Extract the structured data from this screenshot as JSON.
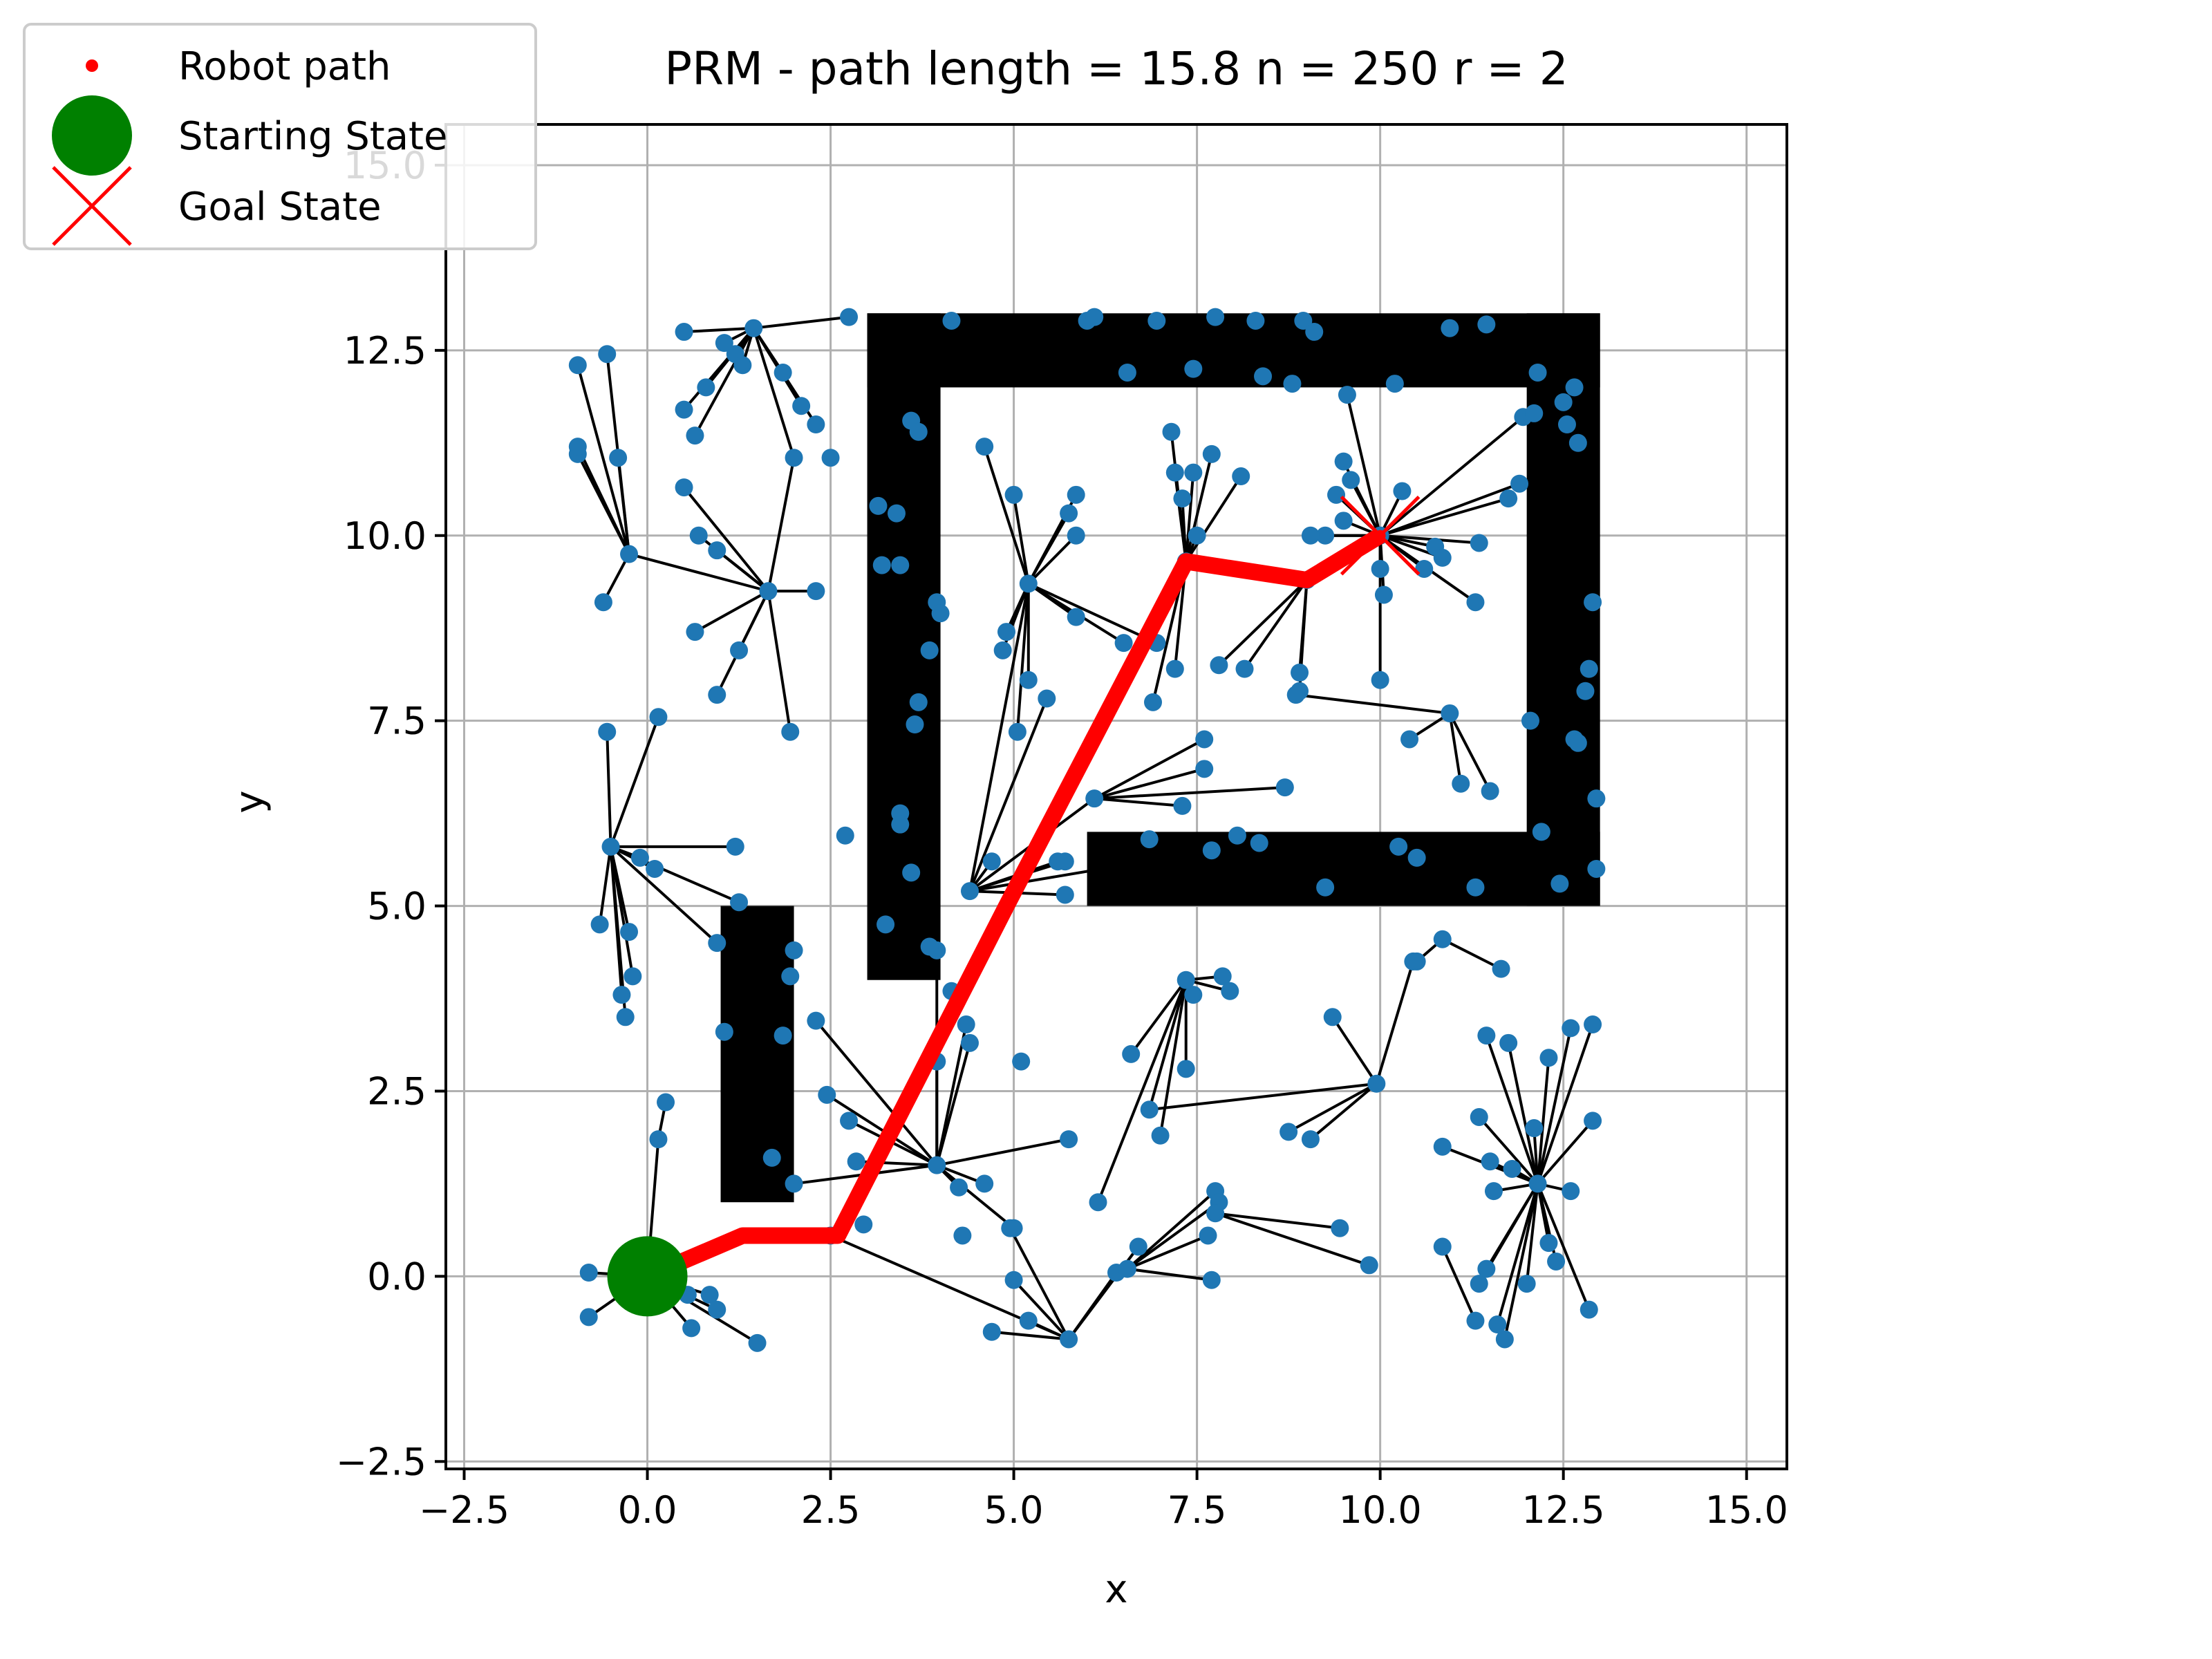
{
  "chart_data": {
    "type": "scatter",
    "title": "PRM - path length = 15.8  n = 250  r = 2",
    "xlabel": "x",
    "ylabel": "y",
    "xlim": [
      -2.75,
      15.55
    ],
    "ylim": [
      -2.6,
      15.55
    ],
    "xticks": [
      -2.5,
      0.0,
      2.5,
      5.0,
      7.5,
      10.0,
      12.5,
      15.0
    ],
    "xtick_labels": [
      "−2.5",
      "0.0",
      "2.5",
      "5.0",
      "7.5",
      "10.0",
      "12.5",
      "15.0"
    ],
    "yticks": [
      -2.5,
      0.0,
      2.5,
      5.0,
      7.5,
      10.0,
      12.5,
      15.0
    ],
    "ytick_labels": [
      "−2.5",
      "0.0",
      "2.5",
      "5.0",
      "7.5",
      "10.0",
      "12.5",
      "15.0"
    ],
    "grid": true,
    "legend": {
      "placement": "upper-left",
      "entries": [
        {
          "label": "Robot path",
          "marker": "dot",
          "color": "#ff0000"
        },
        {
          "label": "Starting State",
          "marker": "circle",
          "color": "#008000"
        },
        {
          "label": "Goal State",
          "marker": "x",
          "color": "#ff0000"
        }
      ]
    },
    "colors": {
      "samples": "#1f77b4",
      "edges": "#000000",
      "path": "#ff0000",
      "start": "#008000",
      "goal": "#ff0000",
      "obstacle": "#000000"
    },
    "obstacles": [
      {
        "x": [
          3.0,
          4.0
        ],
        "y": [
          4.0,
          13.0
        ]
      },
      {
        "x": [
          3.0,
          13.0
        ],
        "y": [
          12.0,
          13.0
        ]
      },
      {
        "x": [
          12.0,
          13.0
        ],
        "y": [
          5.0,
          13.0
        ]
      },
      {
        "x": [
          6.0,
          13.0
        ],
        "y": [
          5.0,
          6.0
        ]
      },
      {
        "x": [
          1.0,
          2.0
        ],
        "y": [
          1.0,
          5.0
        ]
      }
    ],
    "start": {
      "x": 0.0,
      "y": 0.0
    },
    "goal": {
      "x": 10.0,
      "y": 10.0
    },
    "path": {
      "x": [
        0.0,
        1.3,
        2.6,
        4.9,
        7.35,
        9.0,
        10.0
      ],
      "y": [
        0.0,
        0.55,
        0.55,
        5.0,
        9.65,
        9.4,
        10.0
      ]
    },
    "hubs": [
      {
        "x": 1.45,
        "y": 12.8,
        "links": [
          [
            0.5,
            12.75
          ],
          [
            1.05,
            12.6
          ],
          [
            1.2,
            12.45
          ],
          [
            1.3,
            12.3
          ],
          [
            0.8,
            12.0
          ],
          [
            0.5,
            11.7
          ],
          [
            0.65,
            11.35
          ],
          [
            1.85,
            12.2
          ],
          [
            2.1,
            11.75
          ],
          [
            2.3,
            11.5
          ],
          [
            2.0,
            11.05
          ],
          [
            2.75,
            12.95
          ]
        ]
      },
      {
        "x": -0.25,
        "y": 9.75,
        "links": [
          [
            -0.95,
            11.1
          ],
          [
            -0.95,
            11.2
          ],
          [
            -0.4,
            11.05
          ],
          [
            -0.95,
            12.3
          ],
          [
            -0.55,
            12.45
          ],
          [
            -0.6,
            9.1
          ],
          [
            1.65,
            9.25
          ]
        ]
      },
      {
        "x": 1.65,
        "y": 9.25,
        "links": [
          [
            0.5,
            10.65
          ],
          [
            0.7,
            10.0
          ],
          [
            0.95,
            9.8
          ],
          [
            2.3,
            9.25
          ],
          [
            0.65,
            8.7
          ],
          [
            1.25,
            8.45
          ],
          [
            0.95,
            7.85
          ],
          [
            2.0,
            11.05
          ],
          [
            1.95,
            7.35
          ]
        ]
      },
      {
        "x": -0.5,
        "y": 5.8,
        "links": [
          [
            -0.55,
            7.35
          ],
          [
            0.15,
            7.55
          ],
          [
            -0.1,
            5.65
          ],
          [
            0.1,
            5.5
          ],
          [
            0.95,
            4.5
          ],
          [
            1.25,
            5.05
          ],
          [
            -0.65,
            4.75
          ],
          [
            -0.25,
            4.65
          ],
          [
            -0.2,
            4.05
          ],
          [
            -0.35,
            3.8
          ],
          [
            -0.3,
            3.5
          ],
          [
            1.2,
            5.8
          ]
        ]
      },
      {
        "x": 0.15,
        "y": 1.85,
        "links": [
          [
            0.25,
            2.35
          ],
          [
            0.0,
            0.0
          ]
        ]
      },
      {
        "x": 0.0,
        "y": 0.0,
        "links": [
          [
            -0.8,
            0.05
          ],
          [
            -0.8,
            -0.55
          ],
          [
            0.55,
            -0.25
          ],
          [
            0.6,
            -0.7
          ],
          [
            0.85,
            -0.25
          ],
          [
            0.95,
            -0.45
          ],
          [
            1.5,
            -0.9
          ]
        ]
      },
      {
        "x": 5.2,
        "y": 9.35,
        "links": [
          [
            4.6,
            11.2
          ],
          [
            5.0,
            10.55
          ],
          [
            5.75,
            10.3
          ],
          [
            5.85,
            10.55
          ],
          [
            5.85,
            10.0
          ],
          [
            4.9,
            8.7
          ],
          [
            4.85,
            8.45
          ],
          [
            5.2,
            8.05
          ],
          [
            5.05,
            7.35
          ],
          [
            6.95,
            8.55
          ],
          [
            6.5,
            8.55
          ],
          [
            5.85,
            8.9
          ],
          [
            4.4,
            5.2
          ]
        ]
      },
      {
        "x": 7.35,
        "y": 9.65,
        "links": [
          [
            7.15,
            11.4
          ],
          [
            7.2,
            10.85
          ],
          [
            7.3,
            10.5
          ],
          [
            7.45,
            10.85
          ],
          [
            7.7,
            11.1
          ],
          [
            8.1,
            10.8
          ],
          [
            7.5,
            10.0
          ],
          [
            7.2,
            8.2
          ],
          [
            6.9,
            7.75
          ]
        ]
      },
      {
        "x": 9.0,
        "y": 9.4,
        "links": [
          [
            7.8,
            8.25
          ],
          [
            8.15,
            8.2
          ],
          [
            8.9,
            8.15
          ],
          [
            8.9,
            7.9
          ],
          [
            10.0,
            10.0
          ]
        ]
      },
      {
        "x": 10.0,
        "y": 10.0,
        "links": [
          [
            9.55,
            11.9
          ],
          [
            9.4,
            10.55
          ],
          [
            9.5,
            11.0
          ],
          [
            9.6,
            10.75
          ],
          [
            10.3,
            10.6
          ],
          [
            9.5,
            10.2
          ],
          [
            9.25,
            10.0
          ],
          [
            9.05,
            10.0
          ],
          [
            10.75,
            9.85
          ],
          [
            10.85,
            9.7
          ],
          [
            10.6,
            9.55
          ],
          [
            10.05,
            9.2
          ],
          [
            10.0,
            9.55
          ],
          [
            10.0,
            8.05
          ],
          [
            11.3,
            9.1
          ],
          [
            11.35,
            9.9
          ],
          [
            11.9,
            10.7
          ],
          [
            11.95,
            11.6
          ],
          [
            11.75,
            10.5
          ]
        ]
      },
      {
        "x": 8.85,
        "y": 7.85,
        "links": [
          [
            10.95,
            7.6
          ]
        ]
      },
      {
        "x": 10.95,
        "y": 7.6,
        "links": [
          [
            10.4,
            7.25
          ],
          [
            11.1,
            6.65
          ],
          [
            11.5,
            6.55
          ]
        ]
      },
      {
        "x": 4.4,
        "y": 5.2,
        "links": [
          [
            5.6,
            5.6
          ],
          [
            5.7,
            5.6
          ],
          [
            4.7,
            5.6
          ],
          [
            5.7,
            5.15
          ],
          [
            6.1,
            6.45
          ],
          [
            7.7,
            5.75
          ],
          [
            5.45,
            7.8
          ]
        ]
      },
      {
        "x": 6.1,
        "y": 6.45,
        "links": [
          [
            7.6,
            6.85
          ],
          [
            8.7,
            6.6
          ],
          [
            7.3,
            6.35
          ],
          [
            7.6,
            7.25
          ]
        ]
      },
      {
        "x": 7.35,
        "y": 4.0,
        "links": [
          [
            7.45,
            3.8
          ],
          [
            7.85,
            4.05
          ],
          [
            7.95,
            3.85
          ],
          [
            7.35,
            2.8
          ],
          [
            6.85,
            2.25
          ],
          [
            7.0,
            1.9
          ],
          [
            6.6,
            3.0
          ],
          [
            6.15,
            1.0
          ]
        ]
      },
      {
        "x": 3.95,
        "y": 1.5,
        "links": [
          [
            2.3,
            3.45
          ],
          [
            2.45,
            2.45
          ],
          [
            2.75,
            2.1
          ],
          [
            2.85,
            1.55
          ],
          [
            2.0,
            1.25
          ],
          [
            3.95,
            4.4
          ],
          [
            3.95,
            2.9
          ],
          [
            4.35,
            3.4
          ],
          [
            4.4,
            3.15
          ],
          [
            4.25,
            1.2
          ],
          [
            4.6,
            1.25
          ],
          [
            5.0,
            0.65
          ],
          [
            5.75,
            1.85
          ]
        ]
      },
      {
        "x": 5.75,
        "y": -0.85,
        "links": [
          [
            5.0,
            -0.05
          ],
          [
            5.2,
            -0.6
          ],
          [
            4.7,
            -0.75
          ],
          [
            4.95,
            0.65
          ],
          [
            6.4,
            0.05
          ],
          [
            6.7,
            0.4
          ],
          [
            2.5,
            0.55
          ]
        ]
      },
      {
        "x": 6.55,
        "y": 0.1,
        "links": [
          [
            7.75,
            1.15
          ],
          [
            7.8,
            1.0
          ],
          [
            7.65,
            0.55
          ],
          [
            7.7,
            -0.05
          ]
        ]
      },
      {
        "x": 10.85,
        "y": 4.55,
        "links": [
          [
            10.5,
            4.25
          ],
          [
            11.65,
            4.15
          ]
        ]
      },
      {
        "x": 9.95,
        "y": 2.6,
        "links": [
          [
            9.35,
            3.5
          ],
          [
            10.45,
            4.25
          ],
          [
            8.75,
            1.95
          ],
          [
            9.05,
            1.85
          ],
          [
            6.85,
            2.25
          ]
        ]
      },
      {
        "x": 12.15,
        "y": 1.25,
        "links": [
          [
            11.45,
            3.25
          ],
          [
            11.75,
            3.15
          ],
          [
            12.3,
            2.95
          ],
          [
            12.6,
            3.35
          ],
          [
            12.9,
            3.4
          ],
          [
            12.1,
            2.0
          ],
          [
            11.35,
            2.15
          ],
          [
            11.5,
            1.55
          ],
          [
            11.8,
            1.45
          ],
          [
            10.85,
            1.75
          ],
          [
            12.9,
            2.1
          ],
          [
            12.6,
            1.15
          ],
          [
            12.3,
            0.45
          ],
          [
            12.4,
            0.2
          ],
          [
            11.45,
            0.1
          ],
          [
            11.35,
            -0.1
          ],
          [
            12.0,
            -0.1
          ],
          [
            12.85,
            -0.45
          ],
          [
            11.6,
            -0.65
          ],
          [
            11.7,
            -0.85
          ],
          [
            11.55,
            1.15
          ]
        ]
      },
      {
        "x": 10.85,
        "y": 0.4,
        "links": [
          [
            11.3,
            -0.6
          ]
        ]
      },
      {
        "x": 7.75,
        "y": 0.85,
        "links": [
          [
            9.45,
            0.65
          ],
          [
            9.85,
            0.15
          ]
        ]
      }
    ],
    "isolated": [
      [
        4.15,
        12.9
      ],
      [
        6.0,
        12.9
      ],
      [
        6.1,
        12.95
      ],
      [
        6.95,
        12.9
      ],
      [
        7.75,
        12.95
      ],
      [
        8.3,
        12.9
      ],
      [
        8.95,
        12.9
      ],
      [
        9.1,
        12.75
      ],
      [
        10.95,
        12.8
      ],
      [
        11.45,
        12.85
      ],
      [
        6.55,
        12.2
      ],
      [
        7.45,
        12.25
      ],
      [
        8.4,
        12.15
      ],
      [
        8.8,
        12.05
      ],
      [
        10.2,
        12.05
      ],
      [
        12.15,
        12.2
      ],
      [
        12.65,
        12.0
      ],
      [
        12.5,
        11.8
      ],
      [
        12.55,
        11.5
      ],
      [
        12.7,
        11.25
      ],
      [
        12.1,
        11.65
      ],
      [
        3.6,
        11.55
      ],
      [
        3.7,
        11.4
      ],
      [
        3.15,
        10.4
      ],
      [
        3.4,
        10.3
      ],
      [
        3.2,
        9.6
      ],
      [
        3.45,
        9.6
      ],
      [
        3.95,
        9.1
      ],
      [
        4.0,
        8.95
      ],
      [
        3.85,
        8.45
      ],
      [
        3.7,
        7.75
      ],
      [
        3.65,
        7.45
      ],
      [
        3.45,
        6.25
      ],
      [
        3.45,
        6.1
      ],
      [
        3.6,
        5.45
      ],
      [
        3.25,
        4.75
      ],
      [
        3.85,
        4.45
      ],
      [
        2.7,
        5.95
      ],
      [
        2.5,
        11.05
      ],
      [
        12.9,
        9.1
      ],
      [
        12.85,
        8.2
      ],
      [
        12.8,
        7.9
      ],
      [
        12.65,
        7.25
      ],
      [
        12.7,
        7.2
      ],
      [
        12.95,
        6.45
      ],
      [
        12.95,
        5.5
      ],
      [
        12.05,
        7.5
      ],
      [
        6.85,
        5.9
      ],
      [
        8.05,
        5.95
      ],
      [
        8.35,
        5.85
      ],
      [
        10.25,
        5.8
      ],
      [
        10.5,
        5.65
      ],
      [
        9.25,
        5.25
      ],
      [
        11.3,
        5.25
      ],
      [
        12.45,
        5.3
      ],
      [
        12.2,
        6.0
      ],
      [
        1.05,
        3.3
      ],
      [
        1.85,
        3.25
      ],
      [
        1.7,
        1.6
      ],
      [
        2.0,
        4.4
      ],
      [
        1.95,
        4.05
      ],
      [
        2.95,
        0.7
      ],
      [
        4.3,
        0.55
      ],
      [
        5.1,
        2.9
      ],
      [
        4.15,
        3.85
      ]
    ]
  }
}
